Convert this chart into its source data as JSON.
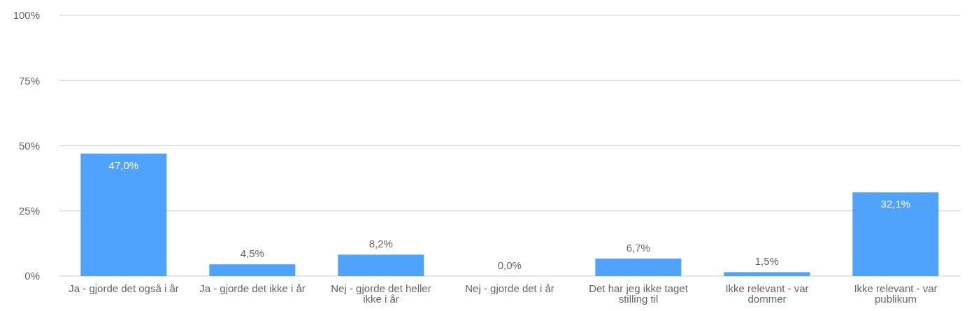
{
  "chart_data": {
    "type": "bar",
    "categories": [
      "Ja - gjorde det også i år",
      "Ja - gjorde det ikke i år",
      "Nej - gjorde det heller ikke i år",
      "Nej - gjorde det i år",
      "Det har jeg ikke taget stilling til",
      "Ikke relevant - var dommer",
      "Ikke relevant - var publikum"
    ],
    "values": [
      47.0,
      4.5,
      8.2,
      0.0,
      6.7,
      1.5,
      32.1
    ],
    "value_labels": [
      "47,0%",
      "4,5%",
      "8,2%",
      "0,0%",
      "6,7%",
      "1,5%",
      "32,1%"
    ],
    "color": "#4fa3fd",
    "ylim": [
      0,
      100
    ],
    "yticks": [
      {
        "value": 0,
        "label": "0%"
      },
      {
        "value": 25,
        "label": "25%"
      },
      {
        "value": 50,
        "label": "50%"
      },
      {
        "value": 75,
        "label": "75%"
      },
      {
        "value": 100,
        "label": "100%"
      }
    ],
    "grid": "y"
  }
}
